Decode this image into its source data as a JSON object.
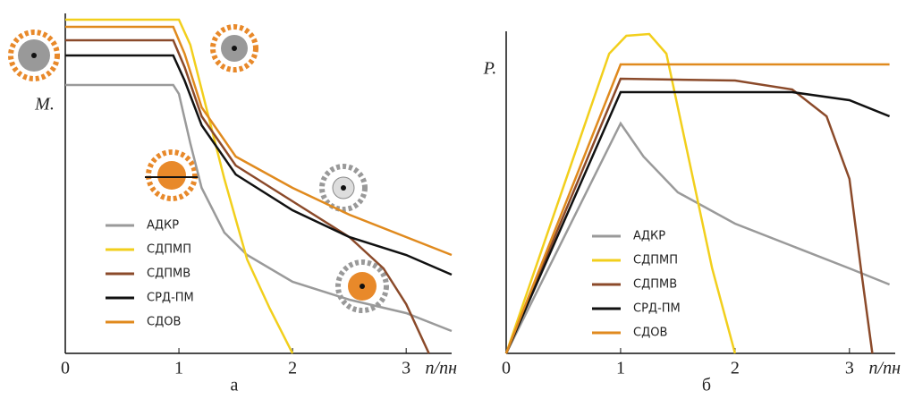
{
  "chart_data": [
    {
      "type": "line",
      "title": "а",
      "xlabel": "n/nн",
      "ylabel": "M.",
      "xlim": [
        0,
        3.4
      ],
      "ylim": [
        0,
        3.8
      ],
      "xticks": [
        0,
        1,
        2,
        3
      ],
      "series": [
        {
          "name": "АДКР",
          "color": "#9a9a9a",
          "x": [
            0,
            0.95,
            1.0,
            1.1,
            1.2,
            1.4,
            1.6,
            2.0,
            2.5,
            3.0,
            3.4
          ],
          "values": [
            3.0,
            3.0,
            2.9,
            2.35,
            1.85,
            1.35,
            1.1,
            0.8,
            0.6,
            0.45,
            0.25
          ]
        },
        {
          "name": "СДПМП",
          "color": "#f2cf1c",
          "x": [
            0,
            1.0,
            1.1,
            1.2,
            1.4,
            1.6,
            1.8,
            2.0
          ],
          "values": [
            3.73,
            3.73,
            3.45,
            2.95,
            1.95,
            1.05,
            0.5,
            0
          ]
        },
        {
          "name": "СДПМВ",
          "color": "#8b4a2a",
          "x": [
            0,
            0.95,
            1.05,
            1.2,
            1.5,
            2.0,
            2.5,
            2.8,
            3.0,
            3.2
          ],
          "values": [
            3.5,
            3.5,
            3.2,
            2.65,
            2.1,
            1.7,
            1.3,
            0.95,
            0.55,
            0
          ]
        },
        {
          "name": "СРД-ПМ",
          "color": "#111111",
          "x": [
            0,
            0.95,
            1.05,
            1.2,
            1.5,
            2.0,
            2.5,
            3.0,
            3.4
          ],
          "values": [
            3.33,
            3.33,
            3.05,
            2.55,
            2.0,
            1.6,
            1.3,
            1.1,
            0.88
          ]
        },
        {
          "name": "СДОВ",
          "color": "#e08a1e",
          "x": [
            0,
            0.95,
            1.05,
            1.2,
            1.5,
            2.0,
            2.5,
            3.0,
            3.4
          ],
          "values": [
            3.65,
            3.65,
            3.35,
            2.75,
            2.2,
            1.85,
            1.55,
            1.3,
            1.1
          ]
        }
      ]
    },
    {
      "type": "line",
      "title": "б",
      "xlabel": "n/nн",
      "ylabel": "P.",
      "xlim": [
        0,
        3.4
      ],
      "ylim": [
        0,
        3.6
      ],
      "xticks": [
        0,
        1,
        2,
        3
      ],
      "series": [
        {
          "name": "АДКР",
          "color": "#9a9a9a",
          "x": [
            0,
            1.0,
            1.2,
            1.5,
            2.0,
            2.5,
            3.0,
            3.35
          ],
          "values": [
            0,
            2.57,
            2.2,
            1.8,
            1.45,
            1.2,
            0.95,
            0.77
          ]
        },
        {
          "name": "СДПМП",
          "color": "#f2cf1c",
          "x": [
            0,
            0.9,
            1.05,
            1.25,
            1.4,
            1.6,
            1.8,
            2.0
          ],
          "values": [
            0,
            3.35,
            3.55,
            3.57,
            3.35,
            2.15,
            0.95,
            0
          ]
        },
        {
          "name": "СДПМВ",
          "color": "#8b4a2a",
          "x": [
            0,
            1.0,
            2.0,
            2.5,
            2.8,
            3.0,
            3.1,
            3.2
          ],
          "values": [
            0,
            3.07,
            3.05,
            2.95,
            2.65,
            1.95,
            0.95,
            0
          ]
        },
        {
          "name": "СРД-ПМ",
          "color": "#111111",
          "x": [
            0,
            1.0,
            2.5,
            3.0,
            3.35
          ],
          "values": [
            0,
            2.92,
            2.92,
            2.83,
            2.65
          ]
        },
        {
          "name": "СДОВ",
          "color": "#e08a1e",
          "x": [
            0,
            1.0,
            3.35
          ],
          "values": [
            0,
            3.23,
            3.23
          ]
        }
      ]
    }
  ]
}
